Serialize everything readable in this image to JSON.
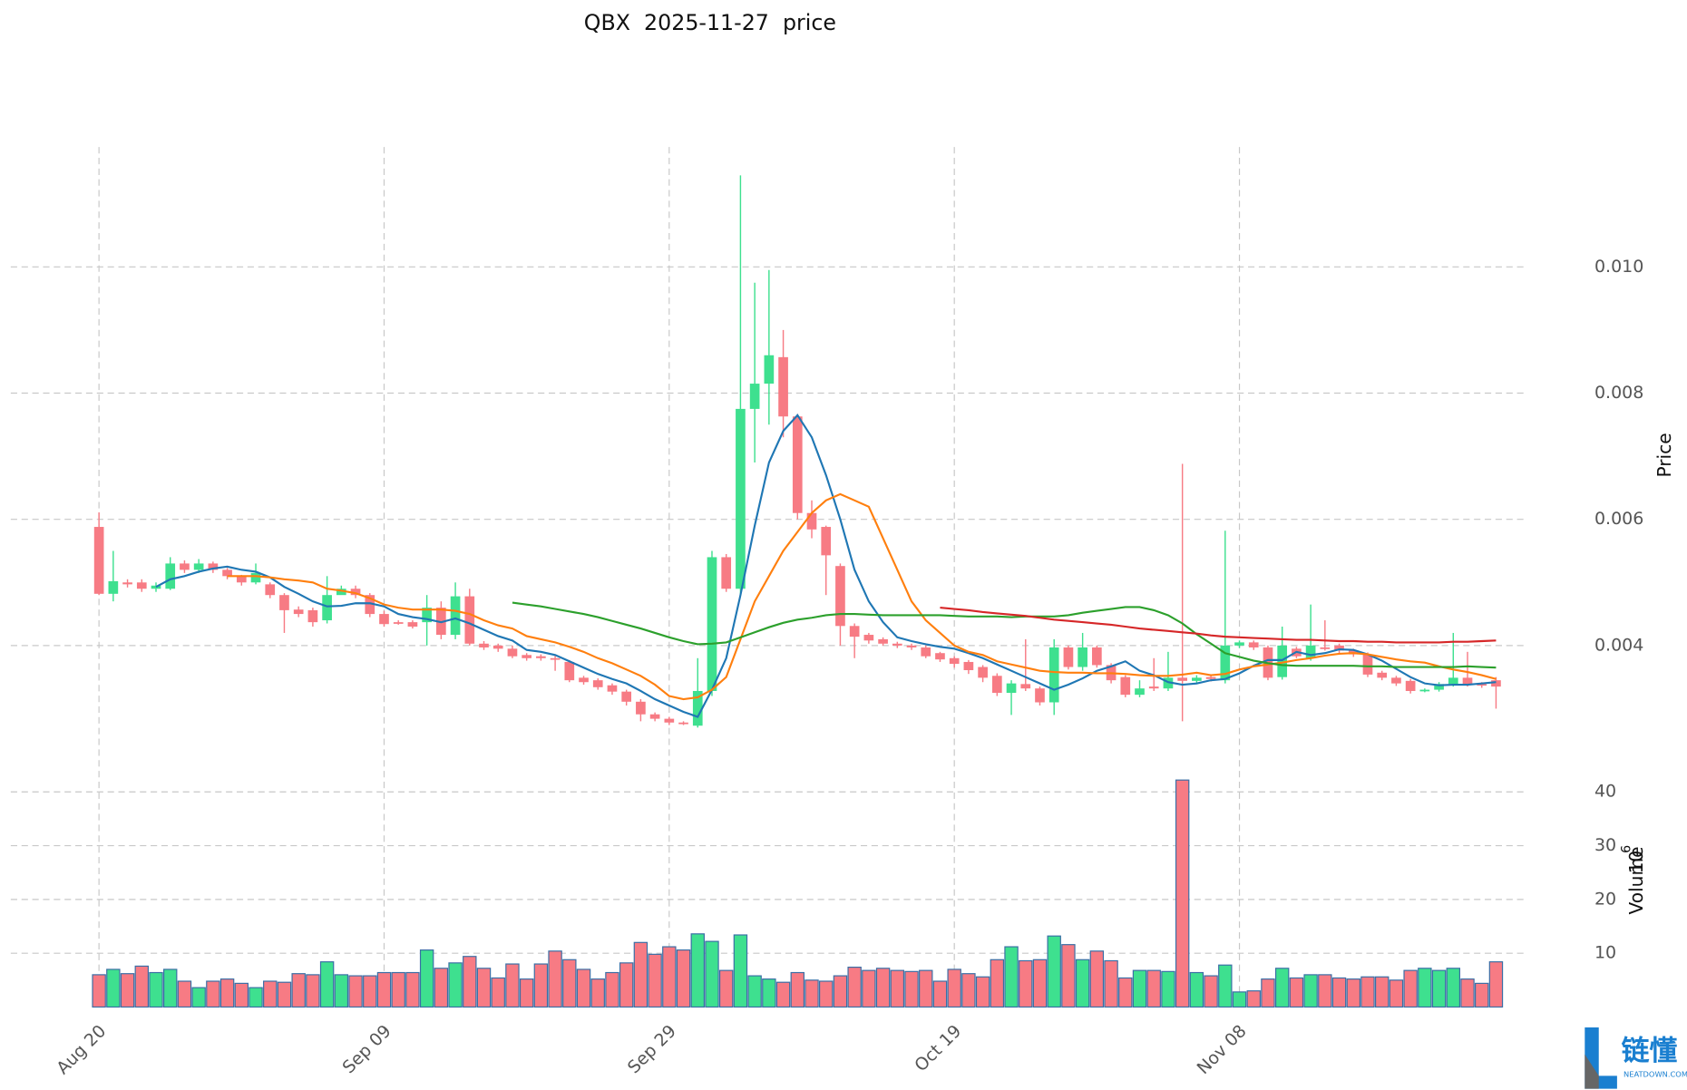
{
  "chart_data": {
    "type": "candlestick",
    "title": "QBX  2025-11-27  price",
    "y_label": "Price",
    "volume_label": "Volume",
    "volume_unit_base": "10",
    "volume_unit_exponent": "6",
    "categories": [
      "Aug 20",
      null,
      null,
      null,
      null,
      null,
      null,
      null,
      null,
      null,
      null,
      null,
      null,
      null,
      null,
      null,
      null,
      null,
      null,
      null,
      "Sep 09",
      null,
      null,
      null,
      null,
      null,
      null,
      null,
      null,
      null,
      null,
      null,
      null,
      null,
      null,
      null,
      null,
      null,
      null,
      null,
      "Sep 29",
      null,
      null,
      null,
      null,
      null,
      null,
      null,
      null,
      null,
      null,
      null,
      null,
      null,
      null,
      null,
      null,
      null,
      null,
      null,
      "Oct 19",
      null,
      null,
      null,
      null,
      null,
      null,
      null,
      null,
      null,
      null,
      null,
      null,
      null,
      null,
      null,
      null,
      null,
      null,
      null,
      "Nov 08",
      null,
      null,
      null,
      null,
      null,
      null,
      null,
      null,
      null,
      null,
      null,
      null,
      null,
      null,
      null,
      null,
      null,
      null
    ],
    "open": [
      0.00588,
      0.00482,
      0.005,
      0.005,
      0.0049,
      0.0049,
      0.0053,
      0.0052,
      0.0053,
      0.0052,
      0.0051,
      0.005,
      0.00497,
      0.0048,
      0.00457,
      0.00456,
      0.0044,
      0.0048,
      0.0049,
      0.0048,
      0.0045,
      0.00437,
      0.00437,
      0.00437,
      0.0046,
      0.00417,
      0.00478,
      0.00403,
      0.004,
      0.00395,
      0.00385,
      0.00383,
      0.0038,
      0.00374,
      0.00349,
      0.00345,
      0.00337,
      0.00327,
      0.00311,
      0.00291,
      0.00284,
      0.00278,
      0.00273,
      0.00328,
      0.0054,
      0.0049,
      0.00775,
      0.00815,
      0.00857,
      0.00763,
      0.0061,
      0.00588,
      0.00526,
      0.00431,
      0.00417,
      0.0041,
      0.00403,
      0.004,
      0.00397,
      0.00388,
      0.0038,
      0.00374,
      0.00366,
      0.00352,
      0.00325,
      0.00339,
      0.00332,
      0.0031,
      0.00397,
      0.00366,
      0.00397,
      0.00369,
      0.0035,
      0.00322,
      0.00335,
      0.00332,
      0.00349,
      0.00344,
      0.0035,
      0.00345,
      0.004,
      0.00405,
      0.00397,
      0.0035,
      0.00395,
      0.0038,
      0.00397,
      0.004,
      0.00392,
      0.00386,
      0.00357,
      0.00349,
      0.00344,
      0.00328,
      0.0033,
      0.00339,
      0.00349,
      0.00339,
      0.00345
    ],
    "high": [
      0.00611,
      0.0055,
      0.00505,
      0.00505,
      0.005,
      0.0054,
      0.00535,
      0.00537,
      0.00533,
      0.00523,
      0.00512,
      0.0053,
      0.005,
      0.00483,
      0.00462,
      0.0046,
      0.0051,
      0.00495,
      0.00495,
      0.00483,
      0.00455,
      0.0044,
      0.0044,
      0.0048,
      0.0047,
      0.005,
      0.0049,
      0.00407,
      0.00403,
      0.004,
      0.00388,
      0.00386,
      0.00384,
      0.00377,
      0.00352,
      0.00348,
      0.0034,
      0.0033,
      0.00315,
      0.00294,
      0.00287,
      0.0028,
      0.0038,
      0.0055,
      0.00545,
      0.01145,
      0.00975,
      0.00995,
      0.009,
      0.00767,
      0.0063,
      0.0059,
      0.0053,
      0.00435,
      0.0042,
      0.00413,
      0.00406,
      0.00403,
      0.004,
      0.0039,
      0.00383,
      0.00377,
      0.00369,
      0.00356,
      0.00345,
      0.0041,
      0.00335,
      0.0041,
      0.004,
      0.0042,
      0.004,
      0.00372,
      0.00353,
      0.00345,
      0.0038,
      0.0039,
      0.00688,
      0.00353,
      0.00352,
      0.00582,
      0.00408,
      0.00408,
      0.004,
      0.0043,
      0.00398,
      0.00465,
      0.0044,
      0.00403,
      0.00395,
      0.00389,
      0.0036,
      0.00352,
      0.00347,
      0.00332,
      0.00342,
      0.0042,
      0.0039,
      0.00342,
      0.0035
    ],
    "low": [
      0.0048,
      0.0047,
      0.00492,
      0.00485,
      0.00485,
      0.00488,
      0.00515,
      0.00515,
      0.00515,
      0.00505,
      0.00495,
      0.00497,
      0.00475,
      0.0042,
      0.00445,
      0.0043,
      0.00435,
      0.00485,
      0.00475,
      0.00445,
      0.0043,
      0.00433,
      0.00427,
      0.004,
      0.0041,
      0.0041,
      0.004,
      0.00393,
      0.0039,
      0.0038,
      0.00376,
      0.00376,
      0.0036,
      0.00342,
      0.00338,
      0.0033,
      0.00322,
      0.00305,
      0.0028,
      0.0028,
      0.00274,
      0.00274,
      0.0027,
      0.0032,
      0.00485,
      0.0048,
      0.0069,
      0.0075,
      0.0073,
      0.006,
      0.0057,
      0.0048,
      0.004,
      0.0038,
      0.00403,
      0.004,
      0.00396,
      0.00393,
      0.0038,
      0.00374,
      0.00365,
      0.00355,
      0.00342,
      0.0032,
      0.0029,
      0.00328,
      0.00305,
      0.0029,
      0.00362,
      0.0036,
      0.00365,
      0.0034,
      0.00318,
      0.00318,
      0.00328,
      0.00328,
      0.0028,
      0.0034,
      0.00343,
      0.0034,
      0.00396,
      0.00393,
      0.00345,
      0.00346,
      0.0038,
      0.00376,
      0.00392,
      0.00388,
      0.00382,
      0.0035,
      0.00345,
      0.00336,
      0.00324,
      0.00326,
      0.00327,
      0.00335,
      0.00335,
      0.00333,
      0.003
    ],
    "close": [
      0.00482,
      0.00502,
      0.00497,
      0.0049,
      0.00495,
      0.0053,
      0.0052,
      0.0053,
      0.0052,
      0.0051,
      0.005,
      0.00515,
      0.0048,
      0.00456,
      0.0045,
      0.00437,
      0.0048,
      0.0049,
      0.0048,
      0.0045,
      0.00434,
      0.00436,
      0.0043,
      0.0046,
      0.00417,
      0.00478,
      0.00403,
      0.00397,
      0.00395,
      0.00383,
      0.0038,
      0.0038,
      0.00378,
      0.00345,
      0.00342,
      0.00334,
      0.00327,
      0.00311,
      0.00291,
      0.00284,
      0.00278,
      0.00277,
      0.00328,
      0.0054,
      0.0049,
      0.00775,
      0.00815,
      0.0086,
      0.00763,
      0.0061,
      0.00584,
      0.00543,
      0.00431,
      0.00414,
      0.00408,
      0.00403,
      0.004,
      0.00397,
      0.00383,
      0.00378,
      0.00371,
      0.00361,
      0.00349,
      0.00325,
      0.0034,
      0.00332,
      0.0031,
      0.00397,
      0.00366,
      0.00397,
      0.00369,
      0.00345,
      0.00322,
      0.00332,
      0.00332,
      0.00349,
      0.00344,
      0.00349,
      0.00347,
      0.004,
      0.00405,
      0.00397,
      0.00349,
      0.004,
      0.00383,
      0.004,
      0.00395,
      0.00392,
      0.00386,
      0.00354,
      0.00349,
      0.0034,
      0.00328,
      0.0033,
      0.00339,
      0.00349,
      0.00339,
      0.00337,
      0.00335
    ],
    "volume": [
      6,
      7,
      6.2,
      7.6,
      6.4,
      7,
      4.8,
      3.6,
      4.8,
      5.2,
      4.4,
      3.6,
      4.8,
      4.6,
      6.2,
      6,
      8.4,
      6,
      5.8,
      5.8,
      6.4,
      6.4,
      6.4,
      10.6,
      7.2,
      8.2,
      9.4,
      7.2,
      5.4,
      8,
      5.2,
      8,
      10.4,
      8.8,
      7,
      5.2,
      6.4,
      8.2,
      12,
      9.8,
      11.2,
      10.6,
      13.6,
      12.2,
      6.8,
      13.4,
      5.8,
      5.2,
      4.6,
      6.4,
      5,
      4.8,
      5.8,
      7.4,
      6.8,
      7.2,
      6.8,
      6.6,
      6.8,
      4.8,
      7,
      6.2,
      5.6,
      8.8,
      11.2,
      8.6,
      8.8,
      13.2,
      11.6,
      8.8,
      10.4,
      8.6,
      5.4,
      6.8,
      6.8,
      6.6,
      42.2,
      6.4,
      5.8,
      7.8,
      2.8,
      3,
      5.2,
      7.2,
      5.4,
      6,
      6,
      5.4,
      5.2,
      5.6,
      5.6,
      5,
      6.8,
      7.2,
      6.8,
      7.2,
      5.2,
      4.4,
      8.4
    ],
    "moving_averages": [
      {
        "color": "#1f77b4",
        "values": [
          null,
          null,
          null,
          null,
          0.00493,
          0.00505,
          0.0051,
          0.00517,
          0.00522,
          0.00525,
          0.0052,
          0.00517,
          0.00508,
          0.00493,
          0.00482,
          0.0047,
          0.00462,
          0.00463,
          0.00467,
          0.00467,
          0.00462,
          0.0045,
          0.00445,
          0.00442,
          0.00437,
          0.00443,
          0.00435,
          0.00425,
          0.00415,
          0.00408,
          0.00393,
          0.0039,
          0.00385,
          0.00375,
          0.00365,
          0.00355,
          0.00347,
          0.0034,
          0.00328,
          0.00315,
          0.00305,
          0.00295,
          0.00287,
          0.0033,
          0.0038,
          0.0048,
          0.0059,
          0.0069,
          0.0074,
          0.00765,
          0.0073,
          0.0067,
          0.006,
          0.0052,
          0.0047,
          0.00437,
          0.00413,
          0.00407,
          0.00402,
          0.00398,
          0.00395,
          0.00388,
          0.0038,
          0.0037,
          0.0036,
          0.0035,
          0.0034,
          0.0033,
          0.00338,
          0.00348,
          0.0036,
          0.00367,
          0.00375,
          0.0036,
          0.00353,
          0.00342,
          0.00338,
          0.0034,
          0.00345,
          0.00347,
          0.00356,
          0.00368,
          0.00377,
          0.00377,
          0.0039,
          0.00385,
          0.00388,
          0.00394,
          0.00393,
          0.00386,
          0.00376,
          0.00363,
          0.0035,
          0.0034,
          0.00337,
          0.00338,
          0.00338,
          0.0034,
          0.00342
        ]
      },
      {
        "color": "#ff7f0e",
        "values": [
          null,
          null,
          null,
          null,
          null,
          null,
          null,
          null,
          null,
          0.0051,
          0.0051,
          0.0051,
          0.00508,
          0.00505,
          0.00503,
          0.005,
          0.0049,
          0.00487,
          0.00483,
          0.00475,
          0.00465,
          0.0046,
          0.00457,
          0.00457,
          0.00457,
          0.00455,
          0.0045,
          0.0044,
          0.00432,
          0.00427,
          0.00415,
          0.0041,
          0.00405,
          0.00398,
          0.0039,
          0.0038,
          0.00372,
          0.00362,
          0.00352,
          0.00338,
          0.0032,
          0.00315,
          0.00318,
          0.0033,
          0.0035,
          0.0041,
          0.0047,
          0.0051,
          0.0055,
          0.0058,
          0.0061,
          0.0063,
          0.0064,
          0.0063,
          0.0062,
          0.0057,
          0.0052,
          0.0047,
          0.0044,
          0.0042,
          0.004,
          0.0039,
          0.00385,
          0.00375,
          0.0037,
          0.00365,
          0.0036,
          0.00358,
          0.00357,
          0.00357,
          0.00356,
          0.00356,
          0.00355,
          0.00353,
          0.00352,
          0.00352,
          0.00354,
          0.00357,
          0.00353,
          0.00355,
          0.00362,
          0.00367,
          0.0037,
          0.00373,
          0.00377,
          0.0038,
          0.00384,
          0.00387,
          0.00388,
          0.00386,
          0.00382,
          0.00378,
          0.00375,
          0.00373,
          0.00367,
          0.00362,
          0.00358,
          0.00353,
          0.00347
        ]
      },
      {
        "color": "#2ca02c",
        "values": [
          null,
          null,
          null,
          null,
          null,
          null,
          null,
          null,
          null,
          null,
          null,
          null,
          null,
          null,
          null,
          null,
          null,
          null,
          null,
          null,
          null,
          null,
          null,
          null,
          null,
          null,
          null,
          null,
          null,
          0.00468,
          0.00465,
          0.00462,
          0.00458,
          0.00454,
          0.0045,
          0.00445,
          0.00439,
          0.00433,
          0.00427,
          0.0042,
          0.00413,
          0.00407,
          0.00402,
          0.00403,
          0.00405,
          0.00413,
          0.00421,
          0.00429,
          0.00436,
          0.00441,
          0.00444,
          0.00448,
          0.0045,
          0.0045,
          0.00449,
          0.00448,
          0.00448,
          0.00448,
          0.00448,
          0.00448,
          0.00447,
          0.00446,
          0.00446,
          0.00446,
          0.00445,
          0.00446,
          0.00446,
          0.00446,
          0.00448,
          0.00452,
          0.00455,
          0.00458,
          0.00461,
          0.00461,
          0.00456,
          0.00448,
          0.00435,
          0.00418,
          0.00403,
          0.00388,
          0.00382,
          0.00376,
          0.00372,
          0.00369,
          0.00368,
          0.00368,
          0.00368,
          0.00368,
          0.00368,
          0.00367,
          0.00367,
          0.00366,
          0.00366,
          0.00366,
          0.00366,
          0.00366,
          0.00367,
          0.00366,
          0.00365
        ]
      },
      {
        "color": "#d62728",
        "values": [
          null,
          null,
          null,
          null,
          null,
          null,
          null,
          null,
          null,
          null,
          null,
          null,
          null,
          null,
          null,
          null,
          null,
          null,
          null,
          null,
          null,
          null,
          null,
          null,
          null,
          null,
          null,
          null,
          null,
          null,
          null,
          null,
          null,
          null,
          null,
          null,
          null,
          null,
          null,
          null,
          null,
          null,
          null,
          null,
          null,
          null,
          null,
          null,
          null,
          null,
          null,
          null,
          null,
          null,
          null,
          null,
          null,
          null,
          null,
          0.0046,
          0.00458,
          0.00456,
          0.00453,
          0.00451,
          0.00449,
          0.00447,
          0.00444,
          0.00441,
          0.00439,
          0.00437,
          0.00435,
          0.00433,
          0.0043,
          0.00427,
          0.00425,
          0.00423,
          0.00421,
          0.00419,
          0.00416,
          0.00414,
          0.00413,
          0.00412,
          0.00411,
          0.0041,
          0.00409,
          0.00409,
          0.00408,
          0.00407,
          0.00407,
          0.00406,
          0.00406,
          0.00405,
          0.00405,
          0.00405,
          0.00405,
          0.00406,
          0.00406,
          0.00407,
          0.00408
        ]
      }
    ],
    "up_color": "#3ee08f",
    "down_color": "#f77b84",
    "volume_edge_color": "#3a6ea5",
    "ylim": [
      0.0023,
      0.0119
    ],
    "yticks": [
      0.004,
      0.006,
      0.008,
      {
        "value": 0.01,
        "label": "0.010"
      }
    ],
    "volume_ylim": [
      0,
      44
    ],
    "volume_yticks": [
      10,
      20,
      30,
      40
    ],
    "grid": true
  },
  "watermark": {
    "text": "链懂",
    "subtext": "NEATDOWN.COM"
  }
}
